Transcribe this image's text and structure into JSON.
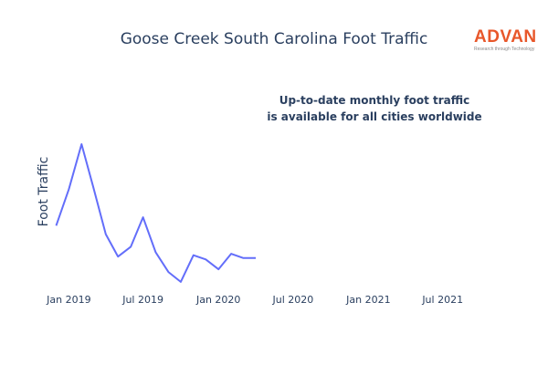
{
  "header": {
    "title": "Goose Creek South Carolina Foot Traffic"
  },
  "logo": {
    "name": "ADVAN",
    "tagline": "Research through Technology",
    "color": "#e8572a"
  },
  "annotation": {
    "line1": "Up-to-date monthly foot traffic",
    "line2": "is available for all cities worldwide"
  },
  "chart_data": {
    "type": "line",
    "title": "Goose Creek South Carolina Foot Traffic",
    "xlabel": "",
    "ylabel": "Foot Traffic",
    "x_ticks": [
      "Jan 2019",
      "Jul 2019",
      "Jan 2020",
      "Jul 2020",
      "Jan 2021",
      "Jul 2021"
    ],
    "xlim": [
      "2018-12-20",
      "2021-10-10"
    ],
    "ylim": [
      0,
      100
    ],
    "y_ticks_visible": false,
    "grid": false,
    "legend": "none",
    "series": [
      {
        "color": "#636efa",
        "x": [
          "2018-12-01",
          "2019-01-01",
          "2019-02-01",
          "2019-03-01",
          "2019-04-01",
          "2019-05-01",
          "2019-06-01",
          "2019-07-01",
          "2019-08-01",
          "2019-09-01",
          "2019-10-01",
          "2019-11-01",
          "2019-12-01",
          "2020-01-01",
          "2020-02-01",
          "2020-03-01",
          "2020-04-01"
        ],
        "y": [
          42,
          68,
          100,
          70,
          36,
          20,
          27,
          48,
          23,
          9,
          2,
          21,
          18,
          11,
          22,
          19,
          19
        ]
      }
    ]
  }
}
